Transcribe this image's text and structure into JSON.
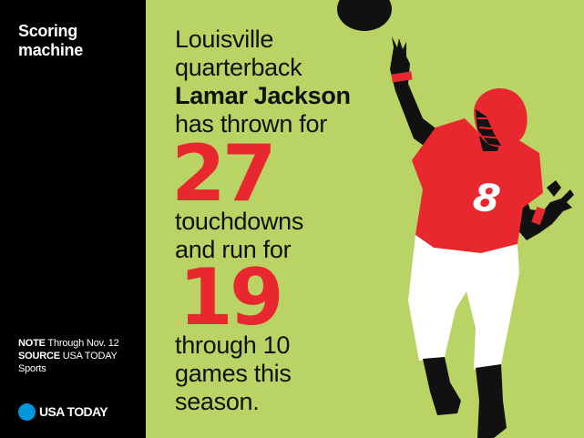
{
  "sidebar": {
    "title_line1": "Scoring",
    "title_line2": "machine",
    "note_label": "NOTE",
    "note_text": " Through Nov. 12",
    "source_label": "SOURCE",
    "source_text": " USA TODAY",
    "source_text2": "Sports",
    "brand": "USA TODAY"
  },
  "story": {
    "line1": "Louisville",
    "line2": "quarterback",
    "line3": "Lamar Jackson",
    "line4": "has thrown for",
    "number1": "27",
    "line5": "touchdowns",
    "line6": "and run for",
    "number2": "19",
    "line7": "through 10",
    "line8": "games this",
    "line9": "season."
  },
  "player": {
    "jersey_number": "8",
    "colors": {
      "jersey": "#e8282e",
      "helmet": "#e8282e",
      "skin": "#111111",
      "pants": "#ffffff",
      "background": "#b9d465"
    }
  }
}
